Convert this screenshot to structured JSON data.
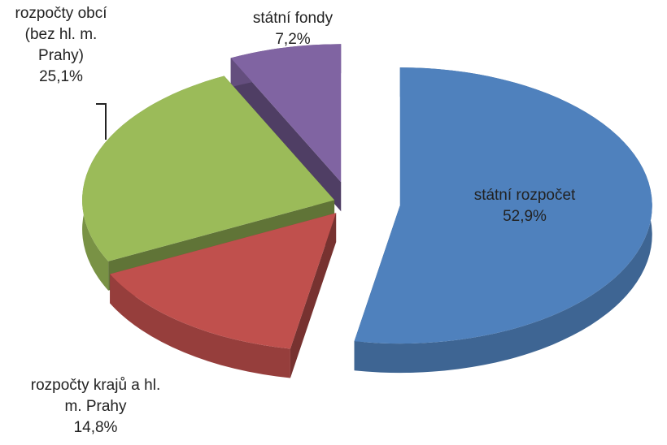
{
  "chart_data": {
    "type": "pie3d",
    "categories": [
      "státní rozpočet",
      "rozpočty krajů a hl. m. Prahy",
      "rozpočty obcí (bez hl. m. Prahy)",
      "státní fondy"
    ],
    "values": [
      52.9,
      14.8,
      25.1,
      7.2
    ],
    "value_labels": [
      "52,9%",
      "14,8%",
      "25,1%",
      "7,2%"
    ],
    "colors": [
      "#4f81bd",
      "#c0504d",
      "#9bbb59",
      "#8064a2"
    ]
  }
}
